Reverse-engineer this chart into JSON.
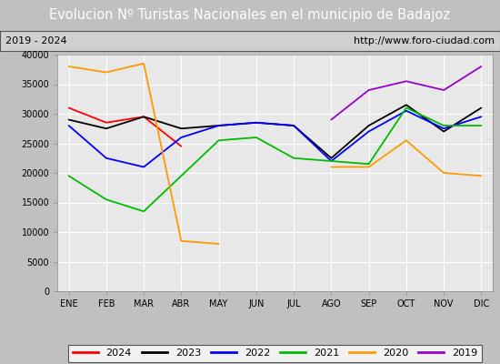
{
  "title": "Evolucion Nº Turistas Nacionales en el municipio de Badajoz",
  "title_color": "#ffffff",
  "title_bg": "#4472c4",
  "subtitle_left": "2019 - 2024",
  "subtitle_right": "http://www.foro-ciudad.com",
  "months": [
    "ENE",
    "FEB",
    "MAR",
    "ABR",
    "MAY",
    "JUN",
    "JUL",
    "AGO",
    "SEP",
    "OCT",
    "NOV",
    "DIC"
  ],
  "ylim": [
    0,
    40000
  ],
  "yticks": [
    0,
    5000,
    10000,
    15000,
    20000,
    25000,
    30000,
    35000,
    40000
  ],
  "series": {
    "2024": {
      "color": "#ff0000",
      "data": [
        31000,
        28500,
        29500,
        24500,
        null,
        null,
        null,
        null,
        null,
        null,
        null,
        null
      ]
    },
    "2023": {
      "color": "#000000",
      "data": [
        29000,
        27500,
        29500,
        27500,
        28000,
        28500,
        28000,
        22500,
        28000,
        31500,
        27000,
        31000
      ]
    },
    "2022": {
      "color": "#0000ff",
      "data": [
        28000,
        22500,
        21000,
        26000,
        28000,
        28500,
        28000,
        22000,
        27000,
        30500,
        27500,
        29500
      ]
    },
    "2021": {
      "color": "#00bb00",
      "data": [
        19500,
        15500,
        13500,
        19500,
        25500,
        26000,
        22500,
        22000,
        21500,
        31000,
        28000,
        28000
      ]
    },
    "2020": {
      "color": "#ff9900",
      "data": [
        38000,
        37000,
        38500,
        8500,
        8000,
        null,
        null,
        21000,
        21000,
        25500,
        20000,
        19500
      ]
    },
    "2019": {
      "color": "#9900cc",
      "data": [
        null,
        null,
        null,
        null,
        null,
        null,
        null,
        29000,
        34000,
        35500,
        34000,
        38000
      ]
    }
  },
  "legend_order": [
    "2024",
    "2023",
    "2022",
    "2021",
    "2020",
    "2019"
  ],
  "plot_bg": "#e8e8e8",
  "grid_color": "#ffffff",
  "outer_bg": "#c0c0c0",
  "figsize": [
    5.5,
    4.0
  ],
  "dpi": 100
}
